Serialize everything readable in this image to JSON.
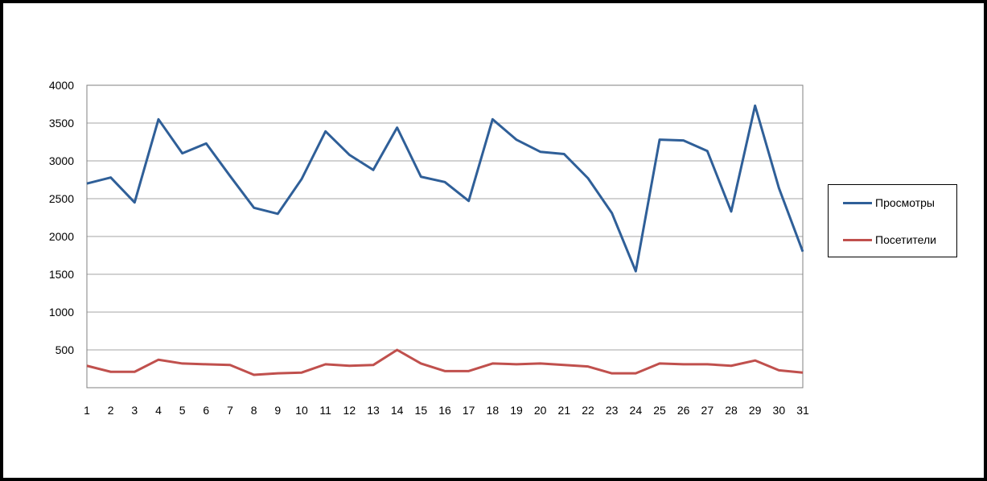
{
  "chart_data": {
    "type": "line",
    "title": "",
    "xlabel": "",
    "ylabel": "",
    "x": [
      1,
      2,
      3,
      4,
      5,
      6,
      7,
      8,
      9,
      10,
      11,
      12,
      13,
      14,
      15,
      16,
      17,
      18,
      19,
      20,
      21,
      22,
      23,
      24,
      25,
      26,
      27,
      28,
      29,
      30,
      31
    ],
    "yticks": [
      500,
      1000,
      1500,
      2000,
      2500,
      3000,
      3500,
      4000
    ],
    "ylim": [
      0,
      4000
    ],
    "grid": "horizontal",
    "legend_position": "right",
    "series": [
      {
        "name": "Просмотры",
        "color": "#2f5f98",
        "values": [
          2700,
          2780,
          2450,
          3550,
          3100,
          3230,
          2800,
          2380,
          2300,
          2760,
          3390,
          3080,
          2880,
          3440,
          2790,
          2720,
          2470,
          3550,
          3280,
          3120,
          3090,
          2770,
          2310,
          1540,
          3280,
          3270,
          3130,
          2330,
          3730,
          2640,
          1800
        ]
      },
      {
        "name": "Посетители",
        "color": "#c0504d",
        "values": [
          290,
          210,
          210,
          370,
          320,
          310,
          300,
          170,
          190,
          200,
          310,
          290,
          300,
          500,
          320,
          220,
          220,
          320,
          310,
          320,
          300,
          280,
          190,
          190,
          320,
          310,
          310,
          290,
          360,
          230,
          200
        ]
      }
    ]
  }
}
